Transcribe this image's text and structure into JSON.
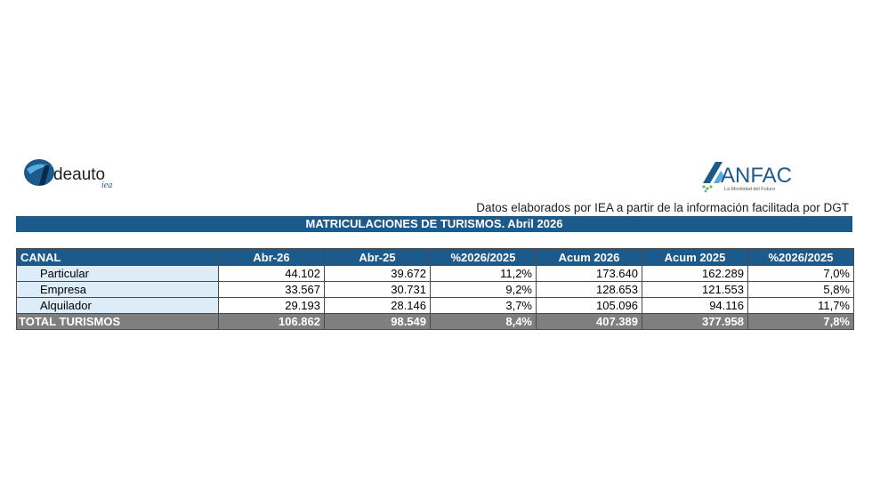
{
  "header": {
    "left_logo": {
      "text_main": "deauto",
      "text_sub": "iea",
      "colors": {
        "primary": "#1d5a8c",
        "accent": "#5aa9e0"
      }
    },
    "right_logo": {
      "text_main": "ANFAC",
      "tagline": "La Movilidad del Futuro",
      "colors": {
        "primary": "#1d5a8c",
        "accent": "#6cbf3a"
      }
    },
    "source_note": "Datos elaborados por IEA a partir de la información facilitada por DGT"
  },
  "table": {
    "title": "MATRICULACIONES DE TURISMOS. Abril 2026",
    "columns": [
      "CANAL",
      "Abr-26",
      "Abr-25",
      "%2026/2025",
      "Acum 2026",
      "Acum 2025",
      "%2026/2025"
    ],
    "rows": [
      [
        "Particular",
        "44.102",
        "39.672",
        "11,2%",
        "173.640",
        "162.289",
        "7,0%"
      ],
      [
        "Empresa",
        "33.567",
        "30.731",
        "9,2%",
        "128.653",
        "121.553",
        "5,8%"
      ],
      [
        "Alquilador",
        "29.193",
        "28.146",
        "3,7%",
        "105.096",
        "94.116",
        "11,7%"
      ]
    ],
    "total": [
      "TOTAL TURISMOS",
      "106.862",
      "98.549",
      "8,4%",
      "407.389",
      "377.958",
      "7,8%"
    ],
    "colors": {
      "header_bg": "#1d5a8c",
      "label_bg": "#dcecf8",
      "total_bg": "#7f7f7f"
    }
  }
}
